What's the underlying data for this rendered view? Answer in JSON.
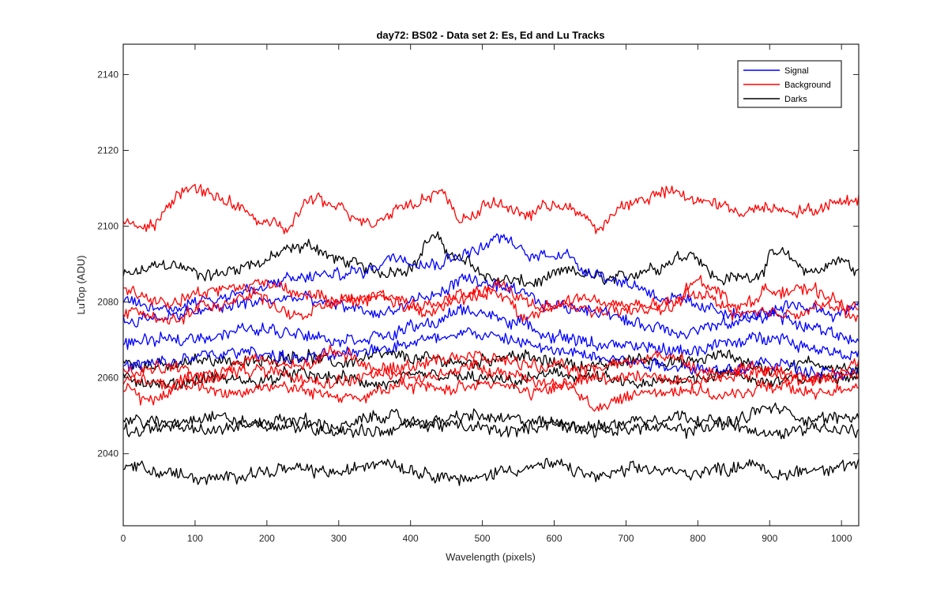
{
  "chart_data": {
    "type": "line",
    "title": "day72: BS02 - Data set 2: Es, Ed and Lu Tracks",
    "xlabel": "Wavelength (pixels)",
    "ylabel": "LuTop (ADU)",
    "xlim": [
      0,
      1024
    ],
    "ylim": [
      2021,
      2148
    ],
    "xticks": [
      0,
      100,
      200,
      300,
      400,
      500,
      600,
      700,
      800,
      900,
      1000
    ],
    "yticks": [
      2040,
      2060,
      2080,
      2100,
      2120,
      2140
    ],
    "grid": false,
    "legend_position": "top-right",
    "legend": [
      {
        "label": "Signal",
        "color": "#0000ff"
      },
      {
        "label": "Background",
        "color": "#ff0000"
      },
      {
        "label": "Darks",
        "color": "#000000"
      }
    ],
    "series": [
      {
        "group": "Background",
        "color": "#ff0000",
        "x": [
          0,
          30,
          90,
          140,
          200,
          225,
          260,
          300,
          340,
          400,
          440,
          470,
          520,
          560,
          600,
          640,
          660,
          700,
          760,
          800,
          860,
          900,
          950,
          1000,
          1024
        ],
        "y": [
          2102,
          2099,
          2110,
          2107,
          2101,
          2099,
          2107,
          2105,
          2101,
          2106,
          2109,
          2102,
          2106,
          2103,
          2106,
          2103,
          2099,
          2106,
          2109,
          2107,
          2104,
          2105,
          2104,
          2106,
          2108
        ]
      },
      {
        "group": "Background",
        "color": "#ff0000",
        "x": [
          0,
          60,
          120,
          200,
          260,
          300,
          360,
          420,
          480,
          520,
          580,
          640,
          700,
          760,
          800,
          860,
          900,
          960,
          1024
        ],
        "y": [
          2083,
          2080,
          2083,
          2085,
          2082,
          2080,
          2082,
          2079,
          2082,
          2084,
          2079,
          2081,
          2079,
          2078,
          2086,
          2079,
          2083,
          2083,
          2078
        ]
      },
      {
        "group": "Background",
        "color": "#ff0000",
        "x": [
          0,
          60,
          120,
          180,
          240,
          300,
          360,
          420,
          480,
          520,
          560,
          620,
          680,
          740,
          800,
          860,
          920,
          980,
          1024
        ],
        "y": [
          2078,
          2075,
          2079,
          2082,
          2076,
          2080,
          2081,
          2077,
          2081,
          2083,
          2076,
          2079,
          2077,
          2079,
          2082,
          2077,
          2077,
          2079,
          2076
        ]
      },
      {
        "group": "Background",
        "color": "#ff0000",
        "x": [
          0,
          60,
          120,
          180,
          240,
          300,
          360,
          420,
          460,
          520,
          580,
          640,
          700,
          760,
          820,
          880,
          940,
          1000,
          1024
        ],
        "y": [
          2061,
          2063,
          2060,
          2065,
          2063,
          2067,
          2062,
          2064,
          2066,
          2065,
          2063,
          2062,
          2064,
          2066,
          2061,
          2063,
          2060,
          2062,
          2064
        ]
      },
      {
        "group": "Background",
        "color": "#ff0000",
        "x": [
          0,
          30,
          90,
          150,
          210,
          270,
          330,
          390,
          450,
          510,
          570,
          620,
          660,
          720,
          780,
          840,
          900,
          960,
          1024
        ],
        "y": [
          2057,
          2054,
          2058,
          2056,
          2058,
          2056,
          2055,
          2058,
          2057,
          2059,
          2056,
          2058,
          2052,
          2056,
          2057,
          2055,
          2058,
          2056,
          2058
        ]
      },
      {
        "group": "Background",
        "color": "#ff0000",
        "x": [
          0,
          60,
          120,
          180,
          240,
          300,
          360,
          420,
          480,
          540,
          600,
          660,
          720,
          780,
          840,
          900,
          960,
          1024
        ],
        "y": [
          2060,
          2058,
          2061,
          2062,
          2060,
          2059,
          2061,
          2060,
          2063,
          2061,
          2058,
          2060,
          2061,
          2059,
          2060,
          2062,
          2059,
          2061
        ]
      },
      {
        "group": "Signal",
        "color": "#0000ff",
        "x": [
          0,
          60,
          120,
          180,
          230,
          280,
          330,
          380,
          430,
          480,
          525,
          570,
          610,
          650,
          700,
          760,
          820,
          880,
          940,
          1000,
          1024
        ],
        "y": [
          2080,
          2078,
          2081,
          2083,
          2086,
          2087,
          2088,
          2092,
          2090,
          2093,
          2097,
          2092,
          2093,
          2088,
          2085,
          2081,
          2078,
          2076,
          2079,
          2077,
          2080
        ]
      },
      {
        "group": "Signal",
        "color": "#0000ff",
        "x": [
          0,
          60,
          120,
          180,
          240,
          300,
          360,
          420,
          480,
          540,
          600,
          660,
          720,
          780,
          840,
          900,
          960,
          1024
        ],
        "y": [
          2075,
          2076,
          2078,
          2080,
          2081,
          2079,
          2077,
          2081,
          2086,
          2083,
          2079,
          2078,
          2074,
          2072,
          2074,
          2077,
          2073,
          2070
        ]
      },
      {
        "group": "Signal",
        "color": "#0000ff",
        "x": [
          0,
          60,
          120,
          180,
          240,
          300,
          360,
          420,
          480,
          540,
          600,
          660,
          720,
          780,
          840,
          900,
          960,
          1024
        ],
        "y": [
          2069,
          2070,
          2071,
          2073,
          2072,
          2070,
          2071,
          2074,
          2078,
          2075,
          2071,
          2069,
          2068,
          2067,
          2069,
          2071,
          2068,
          2066
        ]
      },
      {
        "group": "Signal",
        "color": "#0000ff",
        "x": [
          0,
          60,
          120,
          180,
          240,
          300,
          360,
          420,
          480,
          540,
          600,
          660,
          720,
          780,
          840,
          900,
          960,
          1024
        ],
        "y": [
          2063,
          2064,
          2066,
          2067,
          2065,
          2066,
          2068,
          2070,
          2072,
          2070,
          2067,
          2066,
          2064,
          2063,
          2062,
          2064,
          2062,
          2061
        ]
      },
      {
        "group": "Darks",
        "color": "#000000",
        "x": [
          0,
          60,
          120,
          180,
          240,
          260,
          300,
          360,
          400,
          430,
          470,
          520,
          570,
          620,
          680,
          740,
          790,
          830,
          880,
          910,
          960,
          1000,
          1024
        ],
        "y": [
          2087,
          2090,
          2087,
          2090,
          2094,
          2095,
          2091,
          2088,
          2089,
          2097,
          2091,
          2086,
          2085,
          2088,
          2086,
          2089,
          2093,
          2086,
          2087,
          2093,
          2088,
          2091,
          2088
        ]
      },
      {
        "group": "Darks",
        "color": "#000000",
        "x": [
          0,
          60,
          120,
          180,
          240,
          300,
          360,
          420,
          480,
          540,
          600,
          660,
          720,
          780,
          840,
          900,
          960,
          1024
        ],
        "y": [
          2064,
          2063,
          2065,
          2064,
          2066,
          2064,
          2066,
          2065,
          2064,
          2066,
          2064,
          2063,
          2065,
          2064,
          2066,
          2062,
          2064,
          2062
        ]
      },
      {
        "group": "Darks",
        "color": "#000000",
        "x": [
          0,
          60,
          120,
          180,
          240,
          300,
          360,
          420,
          480,
          540,
          600,
          660,
          720,
          780,
          840,
          900,
          960,
          1024
        ],
        "y": [
          2060,
          2058,
          2060,
          2059,
          2061,
          2060,
          2058,
          2061,
          2060,
          2059,
          2061,
          2060,
          2058,
          2060,
          2061,
          2059,
          2060,
          2061
        ]
      },
      {
        "group": "Darks",
        "color": "#000000",
        "x": [
          0,
          60,
          120,
          180,
          240,
          300,
          360,
          420,
          480,
          540,
          600,
          660,
          720,
          780,
          840,
          900,
          960,
          1024
        ],
        "y": [
          2049,
          2048,
          2050,
          2048,
          2049,
          2047,
          2050,
          2048,
          2050,
          2049,
          2048,
          2047,
          2049,
          2050,
          2048,
          2052,
          2049,
          2050
        ]
      },
      {
        "group": "Darks",
        "color": "#000000",
        "x": [
          0,
          60,
          120,
          180,
          240,
          300,
          360,
          420,
          480,
          540,
          600,
          660,
          720,
          780,
          840,
          900,
          960,
          1024
        ],
        "y": [
          2046,
          2047,
          2046,
          2048,
          2047,
          2046,
          2046,
          2048,
          2047,
          2046,
          2048,
          2046,
          2047,
          2046,
          2048,
          2045,
          2047,
          2046
        ]
      },
      {
        "group": "Darks",
        "color": "#000000",
        "x": [
          0,
          60,
          120,
          180,
          240,
          300,
          360,
          420,
          480,
          540,
          600,
          660,
          720,
          780,
          840,
          880,
          900,
          960,
          1024
        ],
        "y": [
          2037,
          2035,
          2033,
          2035,
          2036,
          2035,
          2038,
          2035,
          2033,
          2036,
          2037,
          2034,
          2036,
          2035,
          2036,
          2038,
          2034,
          2036,
          2037
        ]
      }
    ]
  }
}
